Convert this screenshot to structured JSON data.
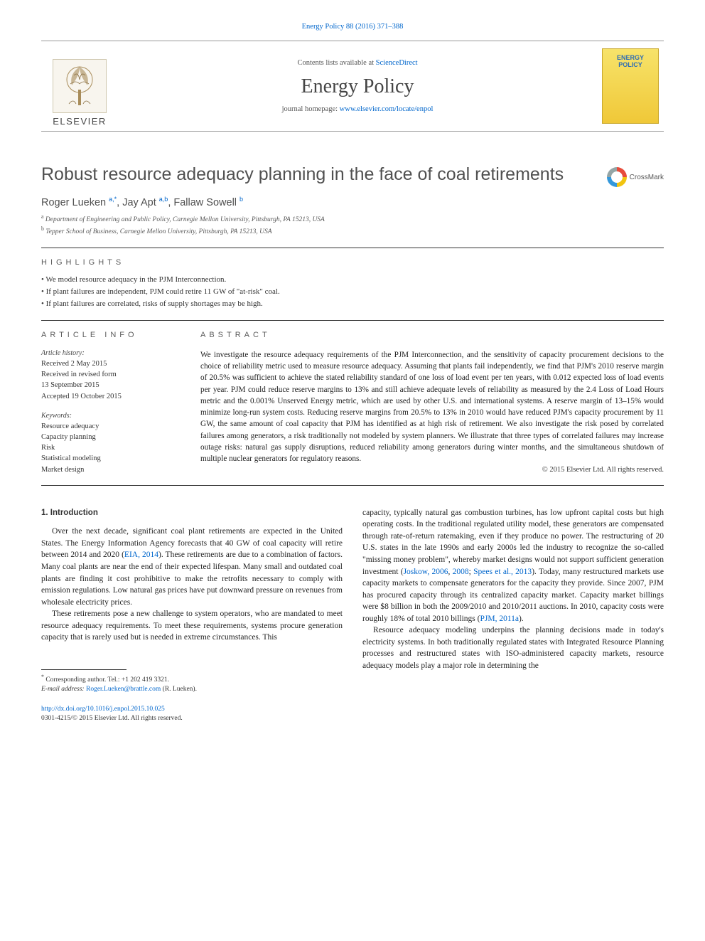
{
  "journal": {
    "citation": "Energy Policy 88 (2016) 371–388",
    "contents_line_prefix": "Contents lists available at ",
    "contents_link": "ScienceDirect",
    "name": "Energy Policy",
    "homepage_prefix": "journal homepage: ",
    "homepage_url": "www.elsevier.com/locate/enpol",
    "publisher_word": "ELSEVIER",
    "cover_text_1": "ENERGY",
    "cover_text_2": "POLICY"
  },
  "colors": {
    "link": "#0066cc",
    "body_text": "#222222",
    "muted_text": "#555555",
    "heading_gray": "#505050",
    "rule": "#333333",
    "elsevier_bg": "#f8f5ee",
    "cover_grad_top": "#f7e36a",
    "cover_grad_bot": "#f0c838",
    "cover_text": "#2e6db4"
  },
  "fonts": {
    "serif": "Georgia, 'Times New Roman', serif",
    "sans": "Arial, Helvetica, sans-serif",
    "title_size_pt": 25,
    "journal_size_pt": 28,
    "body_size_pt": 11.5,
    "abstract_size_pt": 11.2,
    "small_size_pt": 10.5,
    "footnote_size_pt": 9.5
  },
  "crossmark_label": "CrossMark",
  "article": {
    "title": "Robust resource adequacy planning in the face of coal retirements",
    "authors_html": "Roger Lueken <sup>a,*</sup>, Jay Apt <sup>a,b</sup>, Fallaw Sowell <sup>b</sup>",
    "affil_a": "a Department of Engineering and Public Policy, Carnegie Mellon University, Pittsburgh, PA 15213, USA",
    "affil_b": "b Tepper School of Business, Carnegie Mellon University, Pittsburgh, PA 15213, USA"
  },
  "highlights": {
    "heading": "HIGHLIGHTS",
    "items": [
      "We model resource adequacy in the PJM Interconnection.",
      "If plant failures are independent, PJM could retire 11 GW of \"at-risk\" coal.",
      "If plant failures are correlated, risks of supply shortages may be high."
    ]
  },
  "article_info": {
    "heading": "ARTICLE INFO",
    "history_label": "Article history:",
    "history": [
      "Received 2 May 2015",
      "Received in revised form",
      "13 September 2015",
      "Accepted 19 October 2015"
    ],
    "keywords_label": "Keywords:",
    "keywords": [
      "Resource adequacy",
      "Capacity planning",
      "Risk",
      "Statistical modeling",
      "Market design"
    ]
  },
  "abstract": {
    "heading": "ABSTRACT",
    "text": "We investigate the resource adequacy requirements of the PJM Interconnection, and the sensitivity of capacity procurement decisions to the choice of reliability metric used to measure resource adequacy. Assuming that plants fail independently, we find that PJM's 2010 reserve margin of 20.5% was sufficient to achieve the stated reliability standard of one loss of load event per ten years, with 0.012 expected loss of load events per year. PJM could reduce reserve margins to 13% and still achieve adequate levels of reliability as measured by the 2.4 Loss of Load Hours metric and the 0.001% Unserved Energy metric, which are used by other U.S. and international systems. A reserve margin of 13–15% would minimize long-run system costs. Reducing reserve margins from 20.5% to 13% in 2010 would have reduced PJM's capacity procurement by 11 GW, the same amount of coal capacity that PJM has identified as at high risk of retirement. We also investigate the risk posed by correlated failures among generators, a risk traditionally not modeled by system planners. We illustrate that three types of correlated failures may increase outage risks: natural gas supply disruptions, reduced reliability among generators during winter months, and the simultaneous shutdown of multiple nuclear generators for regulatory reasons.",
    "copyright": "© 2015 Elsevier Ltd. All rights reserved."
  },
  "body": {
    "intro_heading": "1. Introduction",
    "left_p1": "Over the next decade, significant coal plant retirements are expected in the United States. The Energy Information Agency forecasts that 40 GW of coal capacity will retire between 2014 and 2020 (EIA, 2014). These retirements are due to a combination of factors. Many coal plants are near the end of their expected lifespan. Many small and outdated coal plants are finding it cost prohibitive to make the retrofits necessary to comply with emission regulations. Low natural gas prices have put downward pressure on revenues from wholesale electricity prices.",
    "left_p2": "These retirements pose a new challenge to system operators, who are mandated to meet resource adequacy requirements. To meet these requirements, systems procure generation capacity that is rarely used but is needed in extreme circumstances. This",
    "right_p1": "capacity, typically natural gas combustion turbines, has low upfront capital costs but high operating costs. In the traditional regulated utility model, these generators are compensated through rate-of-return ratemaking, even if they produce no power. The restructuring of 20 U.S. states in the late 1990s and early 2000s led the industry to recognize the so-called \"missing money problem\", whereby market designs would not support sufficient generation investment (Joskow, 2006, 2008; Spees et al., 2013). Today, many restructured markets use capacity markets to compensate generators for the capacity they provide. Since 2007, PJM has procured capacity through its centralized capacity market. Capacity market billings were $8 billion in both the 2009/2010 and 2010/2011 auctions. In 2010, capacity costs were roughly 18% of total 2010 billings (PJM, 2011a).",
    "right_p2": "Resource adequacy modeling underpins the planning decisions made in today's electricity systems. In both traditionally regulated states with Integrated Resource Planning processes and restructured states with ISO-administered capacity markets, resource adequacy models play a major role in determining the",
    "citations_left": [
      "EIA, 2014"
    ],
    "citations_right": [
      "Joskow, 2006",
      "2008",
      "Spees et al., 2013",
      "PJM, 2011a"
    ]
  },
  "footnotes": {
    "corr": "* Corresponding author. Tel.: +1 202 419 3321.",
    "email_label": "E-mail address: ",
    "email": "Roger.Lueken@brattle.com",
    "email_attrib": " (R. Lueken)."
  },
  "footer": {
    "doi": "http://dx.doi.org/10.1016/j.enpol.2015.10.025",
    "issn_line": "0301-4215/© 2015 Elsevier Ltd. All rights reserved."
  }
}
